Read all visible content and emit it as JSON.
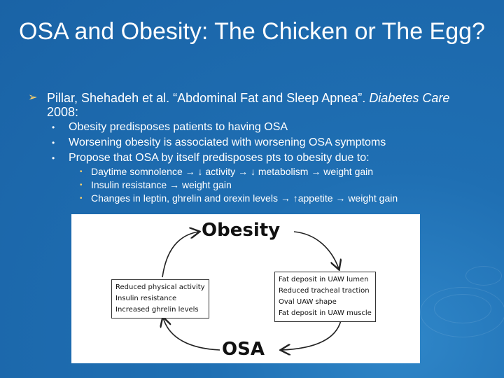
{
  "title": "OSA and Obesity: The Chicken or The Egg?",
  "bullet1": {
    "text_a": "Pillar, Shehadeh et al. “Abdominal Fat and Sleep Apnea”. ",
    "text_italic": "Diabetes Care",
    "text_b": " 2008:"
  },
  "sub": [
    "Obesity predisposes patients to having OSA",
    "Worsening obesity is associated with worsening OSA symptoms",
    "Propose that OSA by itself predisposes pts to obesity due to:"
  ],
  "subsub": [
    "Daytime somnolence → ↓ activity → ↓ metabolism → weight gain",
    "Insulin resistance → weight gain",
    "Changes in leptin, ghrelin and orexin levels → ↑appetite → weight gain"
  ],
  "figure": {
    "top_label": "Obesity",
    "bottom_label": "OSA",
    "left_box": [
      "Reduced physical activity",
      "Insulin resistance",
      "Increased ghrelin levels"
    ],
    "right_box": [
      "Fat deposit in UAW lumen",
      "Reduced tracheal traction",
      "Oval UAW shape",
      "Fat deposit in UAW muscle"
    ]
  }
}
